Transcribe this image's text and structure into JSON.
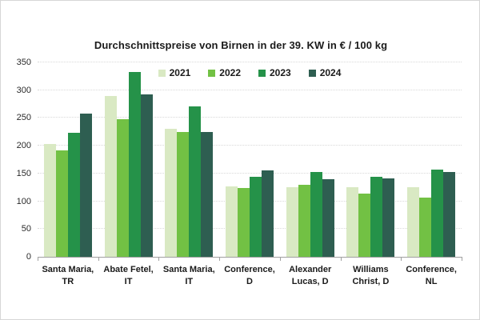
{
  "page": {
    "background": "#ffffff",
    "border_color": "#d6d6d6"
  },
  "chart_data": {
    "type": "bar",
    "title": "Durchschnittspreise von Birnen in der 39. KW in € / 100 kg",
    "categories": [
      "Santa Maria,\nTR",
      "Abate Fetel,\nIT",
      "Santa Maria,\nIT",
      "Conference,\nD",
      "Alexander\nLucas, D",
      "Williams\nChrist, D",
      "Conference,\nNL"
    ],
    "series": [
      {
        "name": "2021",
        "color": "#d9e9c3",
        "values": [
          203,
          289,
          230,
          127,
          126,
          125,
          126
        ]
      },
      {
        "name": "2022",
        "color": "#72c144",
        "values": [
          192,
          248,
          224,
          124,
          130,
          114,
          106
        ]
      },
      {
        "name": "2023",
        "color": "#259249",
        "values": [
          223,
          333,
          271,
          144,
          152,
          144,
          157
        ]
      },
      {
        "name": "2024",
        "color": "#2e5e51",
        "values": [
          258,
          293,
          224,
          155,
          140,
          141,
          152
        ]
      }
    ],
    "ylim": [
      0,
      350
    ],
    "ytick_step": 50,
    "grid": true,
    "grid_style": "dotted",
    "legend_position": "top-center",
    "xlabel": "",
    "ylabel": "",
    "axis_color": "#a0a0a0",
    "text_color": "#1a1a1a"
  }
}
